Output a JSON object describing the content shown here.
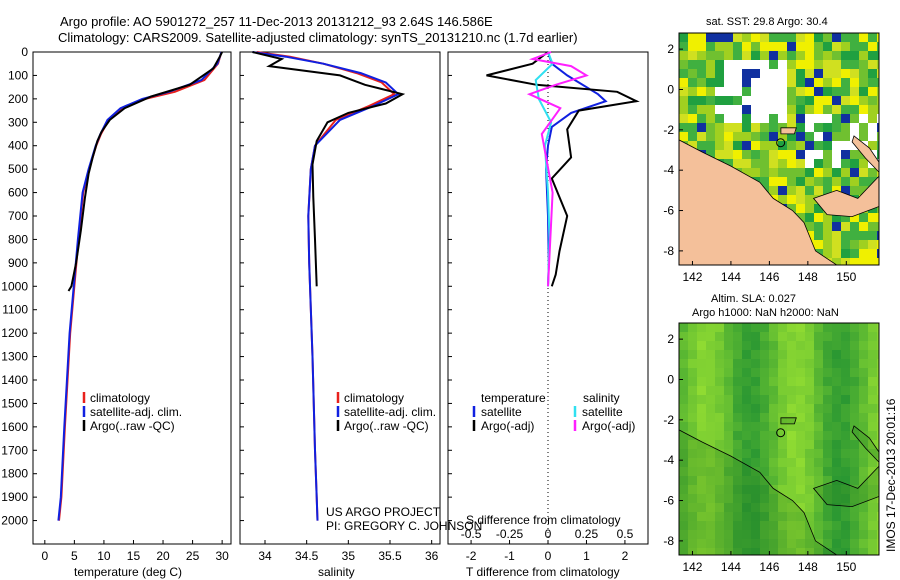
{
  "title": {
    "line1": "Argo profile: AO 5901272_257 11-Dec-2013 20131212_93 2.64S 146.586E",
    "line2": "Climatology: CARS2009. Satellite-adjusted climatology: synTS_20131210.nc (1.7d earlier)"
  },
  "colors": {
    "climatology": "#e8201c",
    "satellite": "#1020e0",
    "argo": "#000000",
    "sal_satellite": "#30e0f0",
    "sal_argo": "#ff20ff",
    "land": "#f4c09a"
  },
  "chart_data": [
    {
      "type": "line",
      "name": "temperature-profile",
      "xlabel": "temperature (deg C)",
      "ylabel": "",
      "xlim": [
        -2,
        31.5
      ],
      "ylim": [
        2100,
        0
      ],
      "xticks": [
        "0",
        "5",
        "10",
        "15",
        "20",
        "25",
        "30"
      ],
      "yticks": [
        "0",
        "100",
        "200",
        "300",
        "400",
        "500",
        "600",
        "700",
        "800",
        "900",
        "1000",
        "1100",
        "1200",
        "1300",
        "1400",
        "1500",
        "1600",
        "1700",
        "1800",
        "1900",
        "2000"
      ],
      "legend": [
        "climatology",
        "satellite-adj. clim.",
        "Argo(..raw -QC)"
      ],
      "series": [
        {
          "name": "climatology",
          "color_key": "climatology",
          "x": [
            29.9,
            29.3,
            27,
            22,
            17,
            13,
            10.8,
            9.5,
            8.7,
            7.5,
            6.5,
            5.7,
            4.3,
            3.4,
            2.8,
            2.4
          ],
          "y": [
            0,
            50,
            120,
            170,
            200,
            240,
            290,
            350,
            400,
            500,
            600,
            800,
            1200,
            1600,
            1900,
            2000
          ]
        },
        {
          "name": "satellite-adj. clim.",
          "color_key": "satellite",
          "x": [
            29.9,
            29.2,
            26.5,
            21,
            16.5,
            12.8,
            10.6,
            9.4,
            8.6,
            7.4,
            6.4,
            5.6,
            4.2,
            3.3,
            2.7,
            2.3
          ],
          "y": [
            0,
            50,
            120,
            170,
            200,
            240,
            290,
            350,
            400,
            500,
            600,
            800,
            1200,
            1600,
            1900,
            2000
          ]
        },
        {
          "name": "Argo",
          "color_key": "argo",
          "x": [
            30,
            29.6,
            28.5,
            24.5,
            18,
            13.5,
            11,
            9.6,
            8.9,
            8.1,
            7.4,
            6.8,
            6.1,
            5.3,
            4.5,
            4.0
          ],
          "y": [
            0,
            20,
            70,
            140,
            190,
            240,
            290,
            340,
            380,
            450,
            520,
            620,
            760,
            900,
            1000,
            1020
          ]
        }
      ]
    },
    {
      "type": "line",
      "name": "salinity-profile",
      "xlabel": "salinity",
      "xlim": [
        33.7,
        36.1
      ],
      "ylim": [
        2100,
        0
      ],
      "xticks": [
        "34",
        "34.5",
        "35",
        "35.5",
        "36"
      ],
      "legend": [
        "climatology",
        "satellite-adj. clim.",
        "Argo(..raw -QC)"
      ],
      "series": [
        {
          "name": "climatology",
          "color_key": "climatology",
          "x": [
            33.9,
            34.3,
            34.7,
            35.1,
            35.4,
            35.55,
            35.25,
            34.85,
            34.6,
            34.55,
            34.52,
            34.53,
            34.57,
            34.6,
            34.62,
            34.63
          ],
          "y": [
            0,
            20,
            50,
            90,
            130,
            180,
            230,
            290,
            400,
            500,
            700,
            900,
            1300,
            1700,
            1900,
            2000
          ]
        },
        {
          "name": "satellite-adj. clim.",
          "color_key": "satellite",
          "x": [
            33.85,
            34.25,
            34.7,
            35.15,
            35.45,
            35.6,
            35.3,
            34.9,
            34.6,
            34.55,
            34.52,
            34.53,
            34.57,
            34.6,
            34.62,
            34.63
          ],
          "y": [
            0,
            20,
            50,
            90,
            130,
            180,
            230,
            290,
            400,
            500,
            700,
            900,
            1300,
            1700,
            1900,
            2000
          ]
        },
        {
          "name": "Argo",
          "color_key": "argo",
          "x": [
            33.85,
            34.2,
            34.05,
            34.9,
            35.2,
            35.65,
            35.45,
            35.0,
            34.75,
            34.62,
            34.57,
            34.58,
            34.6,
            34.62
          ],
          "y": [
            0,
            30,
            60,
            100,
            140,
            180,
            220,
            260,
            300,
            380,
            480,
            620,
            800,
            1000
          ]
        }
      ]
    },
    {
      "type": "line",
      "name": "difference-profile",
      "xlabel": "T difference from climatology",
      "xlabel_top": "S difference from climatology",
      "xlim": [
        -2.6,
        2.6
      ],
      "ylim": [
        2100,
        0
      ],
      "xticks_T": [
        "-2",
        "-1",
        "0",
        "1",
        "2"
      ],
      "xticks_S": [
        "-0.5",
        "-0.25",
        "0",
        "0.25",
        "0.5"
      ],
      "legend_titles": [
        "temperature",
        "salinity"
      ],
      "legend": [
        "satellite",
        "Argo(-adj)",
        "satellite",
        "Argo(-adj)"
      ],
      "series": [
        {
          "name": "T satellite",
          "color_key": "satellite",
          "x": [
            0,
            0.1,
            0.5,
            1.3,
            1.5,
            0.6,
            0.1,
            0,
            -0.05,
            0,
            0.02,
            0
          ],
          "y": [
            0,
            50,
            100,
            180,
            210,
            260,
            320,
            400,
            500,
            700,
            900,
            1000
          ]
        },
        {
          "name": "T Argo(-adj)",
          "color_key": "argo",
          "x": [
            0,
            -0.4,
            -1.6,
            -0.3,
            1.8,
            2.3,
            0.8,
            0.5,
            0.6,
            0.1,
            0.5,
            0.3,
            0.2,
            0.1
          ],
          "y": [
            0,
            50,
            100,
            140,
            170,
            210,
            250,
            330,
            450,
            540,
            700,
            850,
            950,
            1000
          ]
        },
        {
          "name": "S satellite",
          "color_key": "sal_satellite",
          "x": [
            0,
            0.03,
            -0.08,
            -0.06,
            0.02,
            -0.02,
            0,
            0.01,
            0
          ],
          "y": [
            0,
            50,
            120,
            200,
            300,
            400,
            600,
            800,
            1000
          ]
        },
        {
          "name": "S Argo(-adj)",
          "color_key": "sal_argo",
          "x": [
            0.02,
            -0.1,
            0.15,
            0.25,
            0.05,
            -0.12,
            0.08,
            -0.04,
            0.03,
            0
          ],
          "y": [
            0,
            30,
            60,
            100,
            140,
            180,
            240,
            350,
            600,
            1000
          ]
        }
      ]
    },
    {
      "type": "heatmap",
      "name": "sst-map",
      "title": "sat. SST: 29.8 Argo: 30.4",
      "xticks": [
        "142",
        "144",
        "146",
        "148",
        "150"
      ],
      "yticks": [
        "2",
        "0",
        "-2",
        "-4",
        "-6",
        "-8"
      ],
      "xlim": [
        141.3,
        151.7
      ],
      "ylim": [
        -8.7,
        2.8
      ],
      "argo_position": {
        "lon": 146.586,
        "lat": -2.64
      }
    },
    {
      "type": "heatmap",
      "name": "sla-map",
      "title_line1": "Altim. SLA: 0.027",
      "title_line2": "Argo h1000: NaN h2000: NaN",
      "xticks": [
        "142",
        "144",
        "146",
        "148",
        "150"
      ],
      "yticks": [
        "2",
        "0",
        "-2",
        "-4",
        "-6",
        "-8"
      ],
      "xlim": [
        141.3,
        151.7
      ],
      "ylim": [
        -8.7,
        2.8
      ],
      "argo_position": {
        "lon": 146.586,
        "lat": -2.64
      }
    }
  ],
  "annotations": {
    "project_line1": "US ARGO PROJECT",
    "project_line2": "PI: GREGORY C. JOHNSON",
    "imos_stamp": "IMOS 17-Dec-2013 20:01:16"
  }
}
